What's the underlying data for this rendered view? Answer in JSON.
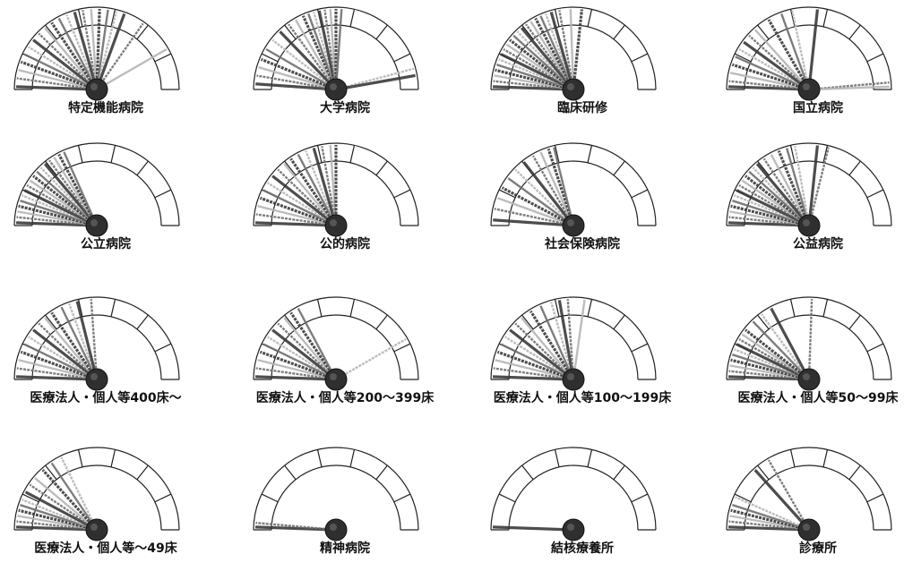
{
  "chart_data": [
    {
      "type": "gauge",
      "title": "特定機能病院",
      "needle_angles_deg": [
        2,
        8,
        14,
        20,
        26,
        32,
        38,
        44,
        50,
        56,
        62,
        68,
        74,
        80,
        86,
        92,
        98,
        104,
        110,
        125,
        150
      ]
    },
    {
      "type": "gauge",
      "title": "大学病院",
      "needle_angles_deg": [
        4,
        10,
        16,
        22,
        30,
        38,
        46,
        54,
        60,
        66,
        70,
        74,
        78,
        82,
        86,
        90,
        94,
        165,
        170
      ]
    },
    {
      "type": "gauge",
      "title": "臨床研修",
      "needle_angles_deg": [
        2,
        6,
        10,
        14,
        18,
        22,
        26,
        30,
        34,
        38,
        42,
        46,
        50,
        54,
        58,
        62,
        66,
        70,
        74,
        80,
        88,
        96
      ]
    },
    {
      "type": "gauge",
      "title": "国立病院",
      "needle_angles_deg": [
        2,
        6,
        12,
        18,
        24,
        30,
        36,
        42,
        48,
        60,
        70,
        78,
        96,
        175,
        178
      ]
    },
    {
      "type": "gauge",
      "title": "公立病院",
      "needle_angles_deg": [
        2,
        6,
        10,
        14,
        18,
        22,
        26,
        30,
        34,
        38,
        42,
        46,
        50,
        54,
        58,
        62,
        66
      ]
    },
    {
      "type": "gauge",
      "title": "公的病院",
      "needle_angles_deg": [
        2,
        8,
        14,
        20,
        26,
        32,
        38,
        44,
        50,
        56,
        62,
        68,
        74,
        80,
        86,
        90
      ]
    },
    {
      "type": "gauge",
      "title": "社会保険病院",
      "needle_angles_deg": [
        4,
        12,
        20,
        28,
        36,
        44,
        52,
        60,
        66,
        72,
        76
      ]
    },
    {
      "type": "gauge",
      "title": "公益病院",
      "needle_angles_deg": [
        2,
        6,
        10,
        14,
        18,
        22,
        26,
        30,
        34,
        38,
        42,
        46,
        50,
        56,
        62,
        68,
        74,
        80,
        96,
        104
      ]
    },
    {
      "type": "gauge",
      "title": "医療法人・個人等400床～",
      "needle_angles_deg": [
        2,
        8,
        14,
        20,
        26,
        32,
        38,
        44,
        50,
        56,
        64,
        70,
        76,
        86
      ]
    },
    {
      "type": "gauge",
      "title": "医療法人・個人等200～399床",
      "needle_angles_deg": [
        2,
        8,
        14,
        20,
        26,
        32,
        38,
        44,
        50,
        56,
        62,
        150
      ]
    },
    {
      "type": "gauge",
      "title": "医療法人・個人等100～199床",
      "needle_angles_deg": [
        2,
        8,
        14,
        20,
        26,
        32,
        38,
        44,
        50,
        58,
        66,
        74,
        80,
        86,
        98
      ]
    },
    {
      "type": "gauge",
      "title": "医療法人・個人等50～99床",
      "needle_angles_deg": [
        2,
        6,
        10,
        14,
        18,
        22,
        26,
        30,
        34,
        38,
        46,
        54,
        62,
        92
      ]
    },
    {
      "type": "gauge",
      "title": "医療法人・個人等～49床",
      "needle_angles_deg": [
        2,
        6,
        10,
        14,
        18,
        22,
        28,
        34,
        40,
        48,
        56,
        64
      ]
    },
    {
      "type": "gauge",
      "title": "精神病院",
      "needle_angles_deg": [
        2,
        5
      ]
    },
    {
      "type": "gauge",
      "title": "結核療養所",
      "needle_angles_deg": [
        2
      ]
    },
    {
      "type": "gauge",
      "title": "診療所",
      "needle_angles_deg": [
        2,
        6,
        10,
        14,
        18,
        24,
        48,
        60
      ]
    }
  ],
  "colors": {
    "needle_dark": "#3a3a3a",
    "needle_mid": "#6f6f6f",
    "needle_light": "#b5b5b5",
    "hub": "#2f2f2f",
    "frame": "#222222"
  }
}
